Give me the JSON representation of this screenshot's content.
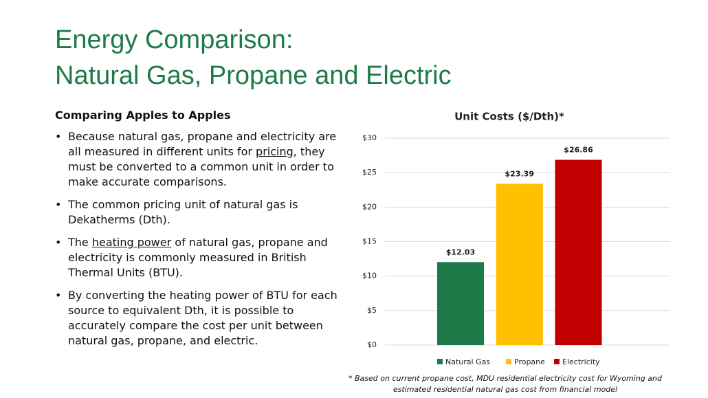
{
  "title": [
    "Energy Comparison:",
    "Natural Gas, Propane and Electric"
  ],
  "subheading": "Comparing Apples to Apples",
  "bullets": [
    {
      "parts": [
        "Because natural gas, propane and electricity are all measured in different units for ",
        "pricing",
        ", they must be converted to a common unit in order to make accurate comparisons."
      ],
      "underlined_part": 1
    },
    {
      "parts": [
        "The common pricing unit of natural gas is Dekatherms (Dth)."
      ]
    },
    {
      "parts": [
        "The ",
        "heating power",
        " of natural gas, propane and electricity is commonly measured in British Thermal Units (BTU)."
      ],
      "underlined_part": 1
    },
    {
      "parts": [
        "By converting the heating power of BTU for each source to equivalent Dth, it is possible to accurately compare the cost per unit between natural gas, propane, and electric."
      ]
    }
  ],
  "footnote": "* Based on current propane cost, MDU residential electricity cost for Wyoming and estimated residential natural gas cost from financial model",
  "chart_data": {
    "type": "bar",
    "title": "Unit Costs ($/Dth)*",
    "categories": [
      "Natural Gas",
      "Propane",
      "Electricity"
    ],
    "values": [
      12.03,
      23.39,
      26.86
    ],
    "value_labels": [
      "$12.03",
      "$23.39",
      "$26.86"
    ],
    "colors": [
      "#1e7b48",
      "#ffc000",
      "#c00000"
    ],
    "ylim": [
      0,
      30
    ],
    "yticks": [
      {
        "value": 0,
        "label": "$0"
      },
      {
        "value": 5,
        "label": "$5"
      },
      {
        "value": 10,
        "label": "$10"
      },
      {
        "value": 15,
        "label": "$15"
      },
      {
        "value": 20,
        "label": "$20"
      },
      {
        "value": 25,
        "label": "$25"
      },
      {
        "value": 30,
        "label": "$30"
      }
    ],
    "grid": true,
    "legend": "bottom"
  }
}
